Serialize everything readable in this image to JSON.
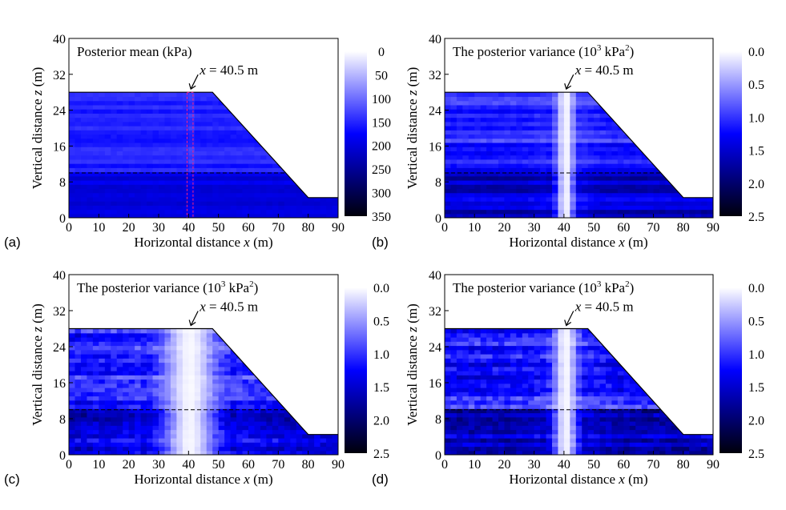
{
  "chart_data": [
    {
      "panel": "(a)",
      "type": "heatmap",
      "title": "Posterior mean (kPa)",
      "xlabel": "Horizontal distance x (m)",
      "ylabel": "Vertical distance z (m)",
      "xlim": [
        0,
        90
      ],
      "ylim": [
        0,
        40
      ],
      "xticks": [
        0,
        10,
        20,
        30,
        40,
        50,
        60,
        70,
        80,
        90
      ],
      "yticks": [
        0,
        8,
        16,
        24,
        32,
        40
      ],
      "annotation": "x = 40.5 m",
      "annotation_x": 40.5,
      "colorbar": {
        "ticks": [
          0,
          50,
          100,
          150,
          200,
          250,
          300,
          350
        ],
        "tick_labels": [
          "0",
          "50",
          "100",
          "150",
          "200",
          "250",
          "300",
          "350"
        ],
        "reversed": true
      },
      "slope_geometry": [
        [
          0,
          0
        ],
        [
          0,
          28
        ],
        [
          48,
          28
        ],
        [
          80,
          4.5
        ],
        [
          90,
          4.5
        ],
        [
          90,
          0
        ]
      ],
      "layer_boundary_z": 10,
      "pattern": "mean"
    },
    {
      "panel": "(b)",
      "type": "heatmap",
      "title": "The posterior variance (10³ kPa²)",
      "xlabel": "Horizontal distance x (m)",
      "ylabel": "Vertical distance z (m)",
      "xlim": [
        0,
        90
      ],
      "ylim": [
        0,
        40
      ],
      "xticks": [
        0,
        10,
        20,
        30,
        40,
        50,
        60,
        70,
        80,
        90
      ],
      "yticks": [
        0,
        8,
        16,
        24,
        32,
        40
      ],
      "annotation": "x = 40.5 m",
      "annotation_x": 40.5,
      "colorbar": {
        "ticks": [
          0.0,
          0.5,
          1.0,
          1.5,
          2.0,
          2.5
        ],
        "tick_labels": [
          "0.0",
          "0.5",
          "1.0",
          "1.5",
          "2.0",
          "2.5"
        ],
        "reversed": true
      },
      "slope_geometry": [
        [
          0,
          0
        ],
        [
          0,
          28
        ],
        [
          48,
          28
        ],
        [
          80,
          4.5
        ],
        [
          90,
          4.5
        ],
        [
          90,
          0
        ]
      ],
      "layer_boundary_z": 10,
      "pattern": "variance-narrow"
    },
    {
      "panel": "(c)",
      "type": "heatmap",
      "title": "The posterior variance (10³ kPa²)",
      "xlabel": "Horizontal distance x (m)",
      "ylabel": "Vertical distance z (m)",
      "xlim": [
        0,
        90
      ],
      "ylim": [
        0,
        40
      ],
      "xticks": [
        0,
        10,
        20,
        30,
        40,
        50,
        60,
        70,
        80,
        90
      ],
      "yticks": [
        0,
        8,
        16,
        24,
        32,
        40
      ],
      "annotation": "x = 40.5 m",
      "annotation_x": 40.5,
      "colorbar": {
        "ticks": [
          0.0,
          0.5,
          1.0,
          1.5,
          2.0,
          2.5
        ],
        "tick_labels": [
          "0.0",
          "0.5",
          "1.0",
          "1.5",
          "2.0",
          "2.5"
        ],
        "reversed": true
      },
      "slope_geometry": [
        [
          0,
          0
        ],
        [
          0,
          28
        ],
        [
          48,
          28
        ],
        [
          80,
          4.5
        ],
        [
          90,
          4.5
        ],
        [
          90,
          0
        ]
      ],
      "layer_boundary_z": 10,
      "pattern": "variance-wide"
    },
    {
      "panel": "(d)",
      "type": "heatmap",
      "title": "The posterior variance (10³ kPa²)",
      "xlabel": "Horizontal distance x (m)",
      "ylabel": "Vertical distance z (m)",
      "xlim": [
        0,
        90
      ],
      "ylim": [
        0,
        40
      ],
      "xticks": [
        0,
        10,
        20,
        30,
        40,
        50,
        60,
        70,
        80,
        90
      ],
      "yticks": [
        0,
        8,
        16,
        24,
        32,
        40
      ],
      "annotation": "x = 40.5 m",
      "annotation_x": 40.5,
      "colorbar": {
        "ticks": [
          0.0,
          0.5,
          1.0,
          1.5,
          2.0,
          2.5
        ],
        "tick_labels": [
          "0.0",
          "0.5",
          "1.0",
          "1.5",
          "2.0",
          "2.5"
        ],
        "reversed": true
      },
      "slope_geometry": [
        [
          0,
          0
        ],
        [
          0,
          28
        ],
        [
          48,
          28
        ],
        [
          80,
          4.5
        ],
        [
          90,
          4.5
        ],
        [
          90,
          0
        ]
      ],
      "layer_boundary_z": 10,
      "pattern": "variance-medium"
    }
  ]
}
